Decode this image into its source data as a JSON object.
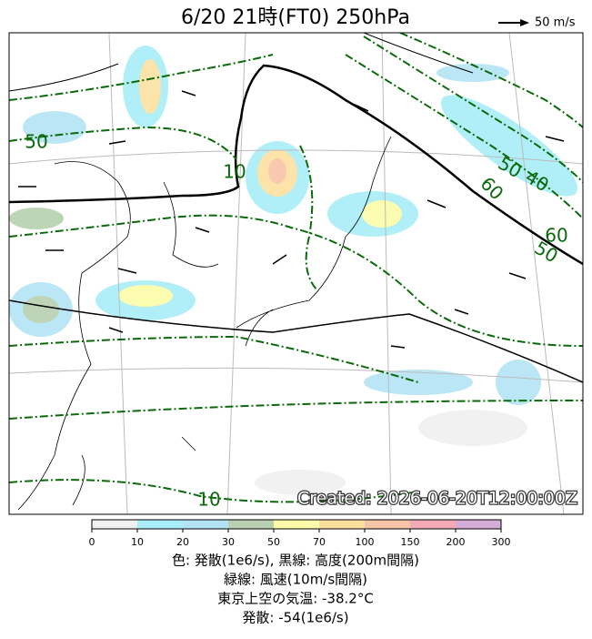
{
  "title": "6/20  21時(FT0)    250hPa",
  "wind_legend": "50 m/s",
  "created": "Created: 2026-06-20T12:00:00Z",
  "contour_labels": [
    "50",
    "10",
    "50",
    "40",
    "60",
    "60",
    "50",
    "10"
  ],
  "colorbar": {
    "ticks": [
      0,
      10,
      20,
      30,
      50,
      70,
      100,
      150,
      200,
      300
    ],
    "colors": [
      "#f0f0f0",
      "#a8eef8",
      "#b4e4f4",
      "#b8d0b0",
      "#fcfca8",
      "#fbe0a0",
      "#f8c4a8",
      "#f4aab4",
      "#d4acd8"
    ]
  },
  "caption": [
    "色: 発散(1e6/s),  黒線: 高度(200m間隔)",
    "緑線: 風速(10m/s間隔)",
    "東京上空の気温: -38.2°C",
    "発散: -54(1e6/s)"
  ]
}
